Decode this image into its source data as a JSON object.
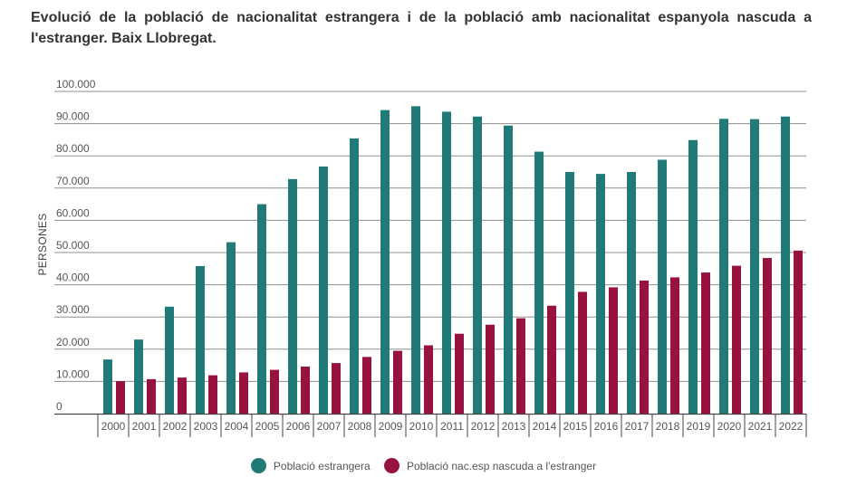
{
  "title": "Evolució de la població de nacionalitat estrangera i de la població amb nacionalitat espanyola nascuda a l'estranger. Baix Llobregat.",
  "colors": {
    "series1": "#1f7a78",
    "series2": "#98123e",
    "grid": "#8f8f8f",
    "axis": "#444444"
  },
  "chart_data": {
    "type": "bar",
    "title": "Evolució de la població de nacionalitat estrangera i de la població amb nacionalitat espanyola nascuda a l'estranger. Baix Llobregat.",
    "xlabel": "",
    "ylabel": "PERSONES",
    "ylim": [
      0,
      100000
    ],
    "yticks": [
      0,
      10000,
      20000,
      30000,
      40000,
      50000,
      60000,
      70000,
      80000,
      90000,
      100000
    ],
    "ytick_labels": [
      "0",
      "10.000",
      "20.000",
      "30.000",
      "40.000",
      "50.000",
      "60.000",
      "70.000",
      "80.000",
      "90.000",
      "100.000"
    ],
    "grid": true,
    "legend_position": "bottom-center",
    "categories": [
      "2000",
      "2001",
      "2002",
      "2003",
      "2004",
      "2005",
      "2006",
      "2007",
      "2008",
      "2009",
      "2010",
      "2011",
      "2012",
      "2013",
      "2014",
      "2015",
      "2016",
      "2017",
      "2018",
      "2019",
      "2020",
      "2021",
      "2022"
    ],
    "series": [
      {
        "name": "Població estrangera",
        "color": "#1f7a78",
        "values": [
          16800,
          23000,
          33200,
          45800,
          53200,
          65000,
          72800,
          76700,
          85400,
          94200,
          95400,
          93700,
          92200,
          89400,
          81300,
          75000,
          74400,
          75000,
          78800,
          84900,
          91500,
          91400,
          92200
        ]
      },
      {
        "name": "Població nac.esp nascuda a l'estranger",
        "color": "#98123e",
        "values": [
          10100,
          10700,
          11200,
          11900,
          12800,
          13600,
          14600,
          15700,
          17600,
          19500,
          21200,
          24800,
          27600,
          29600,
          33500,
          37800,
          39200,
          41300,
          42300,
          43800,
          45900,
          48300,
          50600
        ]
      }
    ]
  }
}
